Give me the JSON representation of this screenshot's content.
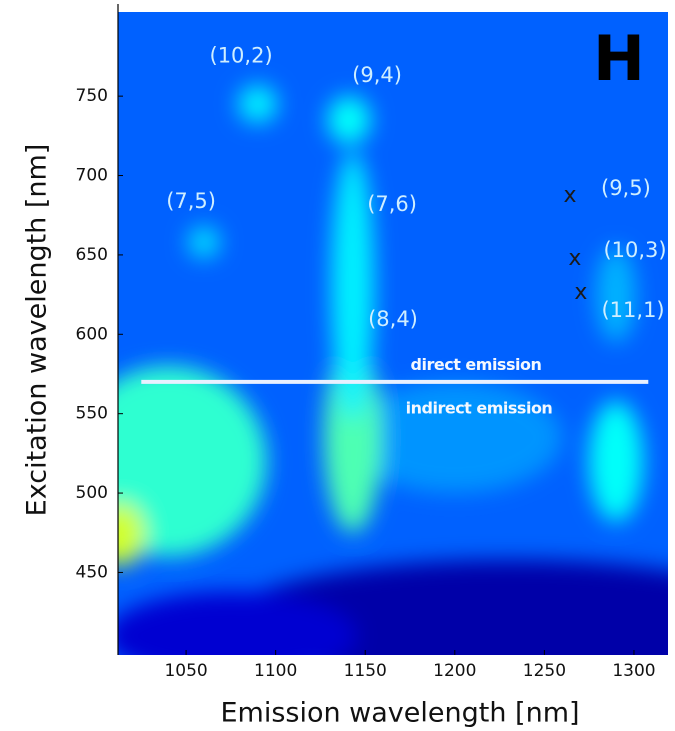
{
  "chart_data": {
    "type": "heatmap",
    "panel_label": "H",
    "x_label": "Emission wavelength [nm]",
    "y_label": "Excitation wavelength [nm]",
    "xlim": [
      1012,
      1319
    ],
    "ylim": [
      398,
      803
    ],
    "xticks": [
      1050,
      1100,
      1150,
      1200,
      1250,
      1300
    ],
    "yticks": [
      450,
      500,
      550,
      600,
      650,
      700,
      750
    ],
    "colormap": "jet",
    "background_z": 0.22,
    "features": [
      {
        "cx": 1230,
        "cy": 418,
        "rx": 160,
        "ry": 40,
        "z": 0.04
      },
      {
        "cx": 1075,
        "cy": 410,
        "rx": 70,
        "ry": 28,
        "z": 0.08
      },
      {
        "cx": 1200,
        "cy": 535,
        "rx": 60,
        "ry": 35,
        "z": 0.27
      },
      {
        "cx": 1040,
        "cy": 520,
        "rx": 55,
        "ry": 60,
        "z": 0.42
      },
      {
        "cx": 1013,
        "cy": 474,
        "rx": 14,
        "ry": 20,
        "z": 0.58
      },
      {
        "cx": 1143,
        "cy": 535,
        "rx": 16,
        "ry": 60,
        "z": 0.45
      },
      {
        "cx": 1143,
        "cy": 630,
        "rx": 12,
        "ry": 85,
        "z": 0.36
      },
      {
        "cx": 1141,
        "cy": 735,
        "rx": 12,
        "ry": 15,
        "z": 0.38
      },
      {
        "cx": 1090,
        "cy": 745,
        "rx": 11,
        "ry": 12,
        "z": 0.36
      },
      {
        "cx": 1060,
        "cy": 658,
        "rx": 9,
        "ry": 10,
        "z": 0.34
      },
      {
        "cx": 1290,
        "cy": 520,
        "rx": 15,
        "ry": 38,
        "z": 0.38
      },
      {
        "cx": 1290,
        "cy": 625,
        "rx": 11,
        "ry": 30,
        "z": 0.3
      }
    ],
    "annotations": [
      {
        "text": "(10,2)",
        "x": 1080.7,
        "y": 775,
        "kind": "peak"
      },
      {
        "text": "(9,4)",
        "x": 1156.6,
        "y": 762.6,
        "kind": "peak"
      },
      {
        "text": "(7,5)",
        "x": 1052.8,
        "y": 683.3,
        "kind": "peak"
      },
      {
        "text": "(7,6)",
        "x": 1165,
        "y": 681.4,
        "kind": "peak"
      },
      {
        "text": "(8,4)",
        "x": 1165.5,
        "y": 609,
        "kind": "peak"
      },
      {
        "text": "(9,5)",
        "x": 1295.5,
        "y": 691.5,
        "kind": "peak"
      },
      {
        "text": "(10,3)",
        "x": 1300.6,
        "y": 652.5,
        "kind": "peak"
      },
      {
        "text": "(11,1)",
        "x": 1299.5,
        "y": 614.8,
        "kind": "peak"
      },
      {
        "text": "x",
        "x": 1264.3,
        "y": 687,
        "kind": "marker"
      },
      {
        "text": "x",
        "x": 1267,
        "y": 647.5,
        "kind": "marker"
      },
      {
        "text": "x",
        "x": 1270.4,
        "y": 626,
        "kind": "marker"
      },
      {
        "text": "direct emission",
        "x": 1211.8,
        "y": 580.2,
        "kind": "emission"
      },
      {
        "text": "indirect emission",
        "x": 1213.5,
        "y": 553,
        "kind": "emission"
      }
    ],
    "separator": {
      "y": 570,
      "x": [
        1025,
        1308
      ],
      "color": "#e8f0ff"
    },
    "panel_position": {
      "x": 1291.6,
      "y": 771
    }
  }
}
